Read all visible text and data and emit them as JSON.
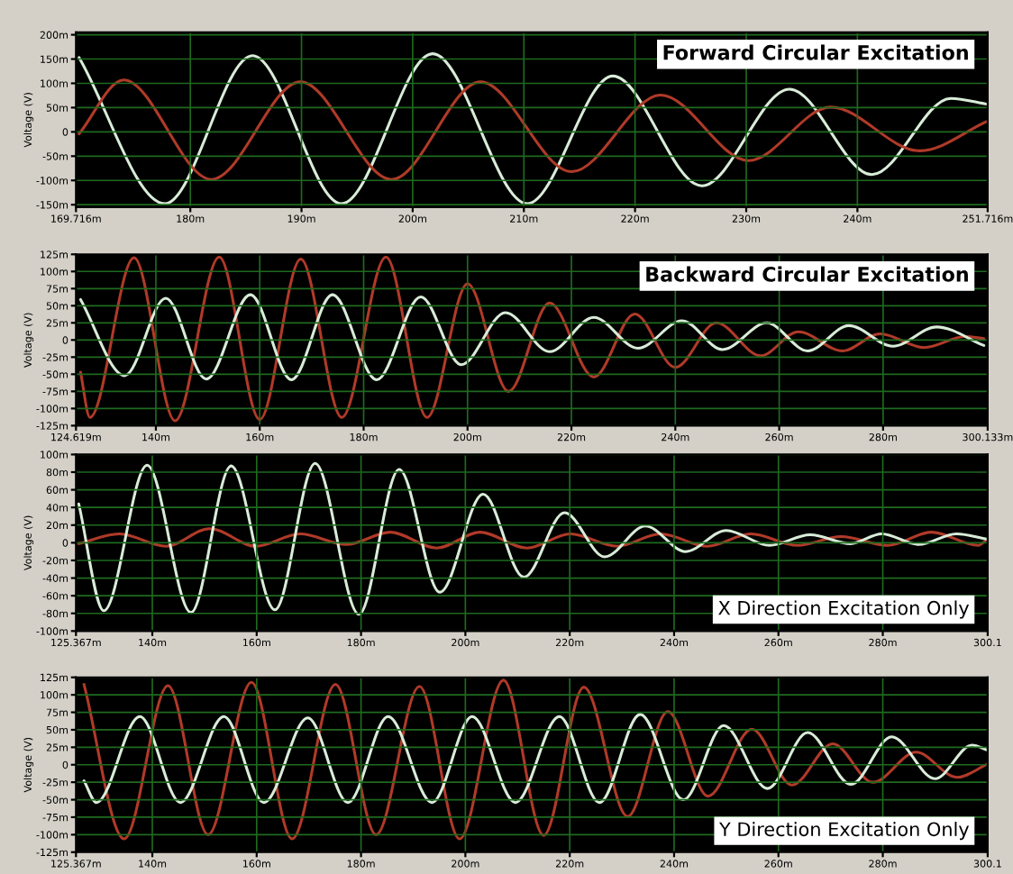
{
  "chart_data": [
    {
      "type": "line",
      "title": "Forward Circular Excitation",
      "ylabel": "Voltage (V)",
      "grid": true,
      "xlim": [
        169.716,
        251.716
      ],
      "xticks": [
        {
          "value": 169.716,
          "label": "169.716m"
        },
        {
          "value": 180,
          "label": "180m"
        },
        {
          "value": 190,
          "label": "190m"
        },
        {
          "value": 200,
          "label": "200m"
        },
        {
          "value": 210,
          "label": "210m"
        },
        {
          "value": 220,
          "label": "220m"
        },
        {
          "value": 230,
          "label": "230m"
        },
        {
          "value": 240,
          "label": "240m"
        },
        {
          "value": 251.716,
          "label": "251.716m"
        }
      ],
      "ylim": [
        -155,
        205
      ],
      "yticks": [
        {
          "value": 200,
          "label": "200m"
        },
        {
          "value": 150,
          "label": "150m"
        },
        {
          "value": 100,
          "label": "100m"
        },
        {
          "value": 50,
          "label": "50m"
        },
        0,
        {
          "value": -50,
          "label": "-50m"
        },
        {
          "value": -100,
          "label": "-100m"
        },
        {
          "value": -150,
          "label": "-150m"
        }
      ],
      "series": [
        {
          "color": "#d8ecd8",
          "x": [
            170.0,
            177.7,
            185.6,
            193.6,
            201.8,
            210.3,
            218.0,
            226.0,
            233.9,
            241.3,
            248.4,
            251.7
          ],
          "values": [
            153,
            -148,
            157,
            -148,
            161,
            -148,
            115,
            -111,
            88,
            -88,
            69,
            57
          ]
        },
        {
          "color": "#b03a28",
          "x": [
            170.0,
            174.0,
            181.9,
            189.9,
            198.1,
            206.1,
            214.3,
            222.3,
            230.2,
            237.6,
            245.6,
            251.7
          ],
          "values": [
            -4,
            107,
            -98,
            103,
            -98,
            103,
            -82,
            76,
            -59,
            51,
            -39,
            22
          ]
        }
      ]
    },
    {
      "type": "line",
      "title": "Backward Circular Excitation",
      "ylabel": "Voltage (V)",
      "grid": true,
      "xlim": [
        124.619,
        300.133
      ],
      "xticks": [
        {
          "value": 124.619,
          "label": "124.619m"
        },
        {
          "value": 140,
          "label": "140m"
        },
        {
          "value": 160,
          "label": "160m"
        },
        {
          "value": 180,
          "label": "180m"
        },
        {
          "value": 200,
          "label": "200m"
        },
        {
          "value": 220,
          "label": "220m"
        },
        {
          "value": 240,
          "label": "240m"
        },
        {
          "value": 260,
          "label": "260m"
        },
        {
          "value": 280,
          "label": "280m"
        },
        {
          "value": 300.133,
          "label": "300.133m"
        }
      ],
      "ylim": [
        -125,
        125
      ],
      "yticks": [
        {
          "value": 125,
          "label": "125m"
        },
        {
          "value": 100,
          "label": "100m"
        },
        {
          "value": 75,
          "label": "75m"
        },
        {
          "value": 50,
          "label": "50m"
        },
        {
          "value": 25,
          "label": "25m"
        },
        0,
        {
          "value": -25,
          "label": "-25m"
        },
        {
          "value": -50,
          "label": "-50m"
        },
        {
          "value": -75,
          "label": "-75m"
        },
        {
          "value": -100,
          "label": "-100m"
        },
        {
          "value": -125,
          "label": "-125m"
        }
      ],
      "series": [
        {
          "color": "#b03a28",
          "x": [
            125.5,
            127.3,
            135.8,
            143.7,
            152.2,
            160.0,
            167.9,
            175.8,
            184.3,
            192.2,
            200.0,
            207.9,
            215.8,
            224.3,
            232.2,
            240.0,
            247.9,
            256.4,
            263.7,
            272.2,
            279.4,
            287.9,
            295.8,
            299.4
          ],
          "values": [
            -47,
            -113,
            120,
            -118,
            121,
            -116,
            118,
            -113,
            121,
            -113,
            82,
            -75,
            54,
            -54,
            38,
            -40,
            25,
            -23,
            12,
            -16,
            9,
            -11,
            5,
            2
          ]
        },
        {
          "color": "#d8ecd8",
          "x": [
            125.5,
            134.0,
            141.9,
            149.7,
            158.2,
            166.1,
            174.0,
            182.5,
            191.0,
            198.8,
            207.3,
            215.8,
            224.3,
            232.8,
            241.3,
            249.1,
            257.6,
            265.5,
            273.4,
            281.9,
            290.3,
            299.4
          ],
          "values": [
            59,
            -52,
            61,
            -57,
            66,
            -58,
            66,
            -58,
            63,
            -36,
            40,
            -17,
            33,
            -12,
            28,
            -14,
            25,
            -16,
            21,
            -9,
            19,
            -8
          ]
        }
      ]
    },
    {
      "type": "line",
      "title": "X Direction Excitation Only",
      "ylabel": "Voltage (V)",
      "grid": true,
      "xlim": [
        125.367,
        300.1
      ],
      "xticks": [
        {
          "value": 125.367,
          "label": "125.367m"
        },
        {
          "value": 140,
          "label": "140m"
        },
        {
          "value": 160,
          "label": "160m"
        },
        {
          "value": 180,
          "label": "180m"
        },
        {
          "value": 200,
          "label": "200m"
        },
        {
          "value": 220,
          "label": "220m"
        },
        {
          "value": 240,
          "label": "240m"
        },
        {
          "value": 260,
          "label": "260m"
        },
        {
          "value": 280,
          "label": "280m"
        },
        {
          "value": 300.1,
          "label": "300.1"
        }
      ],
      "ylim": [
        -100,
        100
      ],
      "yticks": [
        {
          "value": 100,
          "label": "100m"
        },
        {
          "value": 80,
          "label": "80m"
        },
        {
          "value": 60,
          "label": "60m"
        },
        {
          "value": 40,
          "label": "40m"
        },
        {
          "value": 20,
          "label": "20m"
        },
        0,
        {
          "value": -20,
          "label": "-20m"
        },
        {
          "value": -40,
          "label": "-40m"
        },
        {
          "value": -60,
          "label": "-60m"
        },
        {
          "value": -80,
          "label": "-80m"
        },
        {
          "value": -100,
          "label": "-100m"
        }
      ],
      "series": [
        {
          "color": "#b03a28",
          "x": [
            125.9,
            133.7,
            142.6,
            151.0,
            159.9,
            168.3,
            177.2,
            185.6,
            194.5,
            202.8,
            211.8,
            220.1,
            229.1,
            237.4,
            246.4,
            254.7,
            263.7,
            272.0,
            281.0,
            289.3,
            298.3,
            300.0
          ],
          "values": [
            -1,
            10,
            -4,
            16,
            -4,
            10,
            -2,
            12,
            -6,
            12,
            -6,
            10,
            -4,
            10,
            -4,
            10,
            -3,
            7,
            -3,
            12,
            -3,
            4
          ]
        },
        {
          "color": "#d8ecd8",
          "x": [
            125.9,
            130.7,
            139.0,
            147.4,
            155.1,
            163.5,
            171.2,
            179.6,
            187.3,
            195.1,
            203.4,
            211.2,
            219.0,
            226.7,
            234.5,
            242.2,
            250.0,
            258.3,
            266.1,
            273.8,
            279.8,
            286.9,
            294.1,
            300.0
          ],
          "values": [
            44,
            -77,
            88,
            -79,
            87,
            -76,
            90,
            -81,
            83,
            -56,
            55,
            -39,
            34,
            -16,
            19,
            -10,
            14,
            -3,
            9,
            -1,
            10,
            -2,
            10,
            4
          ]
        }
      ]
    },
    {
      "type": "line",
      "title": "Y Direction Excitation Only",
      "ylabel": "Voltage (V)",
      "grid": true,
      "xlim": [
        125.367,
        300.1
      ],
      "xticks": [
        {
          "value": 125.367,
          "label": "125.367m"
        },
        {
          "value": 140,
          "label": "140m"
        },
        {
          "value": 160,
          "label": "160m"
        },
        {
          "value": 180,
          "label": "180m"
        },
        {
          "value": 200,
          "label": "200m"
        },
        {
          "value": 220,
          "label": "220m"
        },
        {
          "value": 240,
          "label": "240m"
        },
        {
          "value": 260,
          "label": "260m"
        },
        {
          "value": 280,
          "label": "280m"
        },
        {
          "value": 300.1,
          "label": "300.1"
        }
      ],
      "ylim": [
        -125,
        125
      ],
      "yticks": [
        {
          "value": 125,
          "label": "125m"
        },
        {
          "value": 100,
          "label": "100m"
        },
        {
          "value": 75,
          "label": "75m"
        },
        {
          "value": 50,
          "label": "50m"
        },
        {
          "value": 25,
          "label": "25m"
        },
        0,
        {
          "value": -25,
          "label": "-25m"
        },
        {
          "value": -50,
          "label": "-50m"
        },
        {
          "value": -75,
          "label": "-75m"
        },
        {
          "value": -100,
          "label": "-100m"
        },
        {
          "value": -125,
          "label": "-125m"
        }
      ],
      "series": [
        {
          "color": "#b03a28",
          "x": [
            126.9,
            134.6,
            143.0,
            150.7,
            159.0,
            166.8,
            175.1,
            182.9,
            191.2,
            198.9,
            207.3,
            215.0,
            222.7,
            231.1,
            238.8,
            246.5,
            254.9,
            262.6,
            270.4,
            278.1,
            286.4,
            294.2,
            300.1
          ],
          "values": [
            115,
            -106,
            113,
            -100,
            118,
            -106,
            115,
            -100,
            112,
            -106,
            121,
            -101,
            111,
            -74,
            76,
            -45,
            51,
            -29,
            30,
            -25,
            18,
            -18,
            1
          ]
        },
        {
          "color": "#d8ecd8",
          "x": [
            126.9,
            129.3,
            137.6,
            145.4,
            153.7,
            161.4,
            169.8,
            177.5,
            185.2,
            193.6,
            201.3,
            209.6,
            218.0,
            225.7,
            233.5,
            241.8,
            249.5,
            257.9,
            265.6,
            273.9,
            281.7,
            290.0,
            297.1,
            300.1
          ],
          "values": [
            -23,
            -54,
            69,
            -54,
            69,
            -54,
            67,
            -54,
            69,
            -54,
            69,
            -54,
            69,
            -54,
            72,
            -50,
            56,
            -34,
            46,
            -28,
            40,
            -20,
            28,
            21
          ]
        }
      ]
    }
  ]
}
